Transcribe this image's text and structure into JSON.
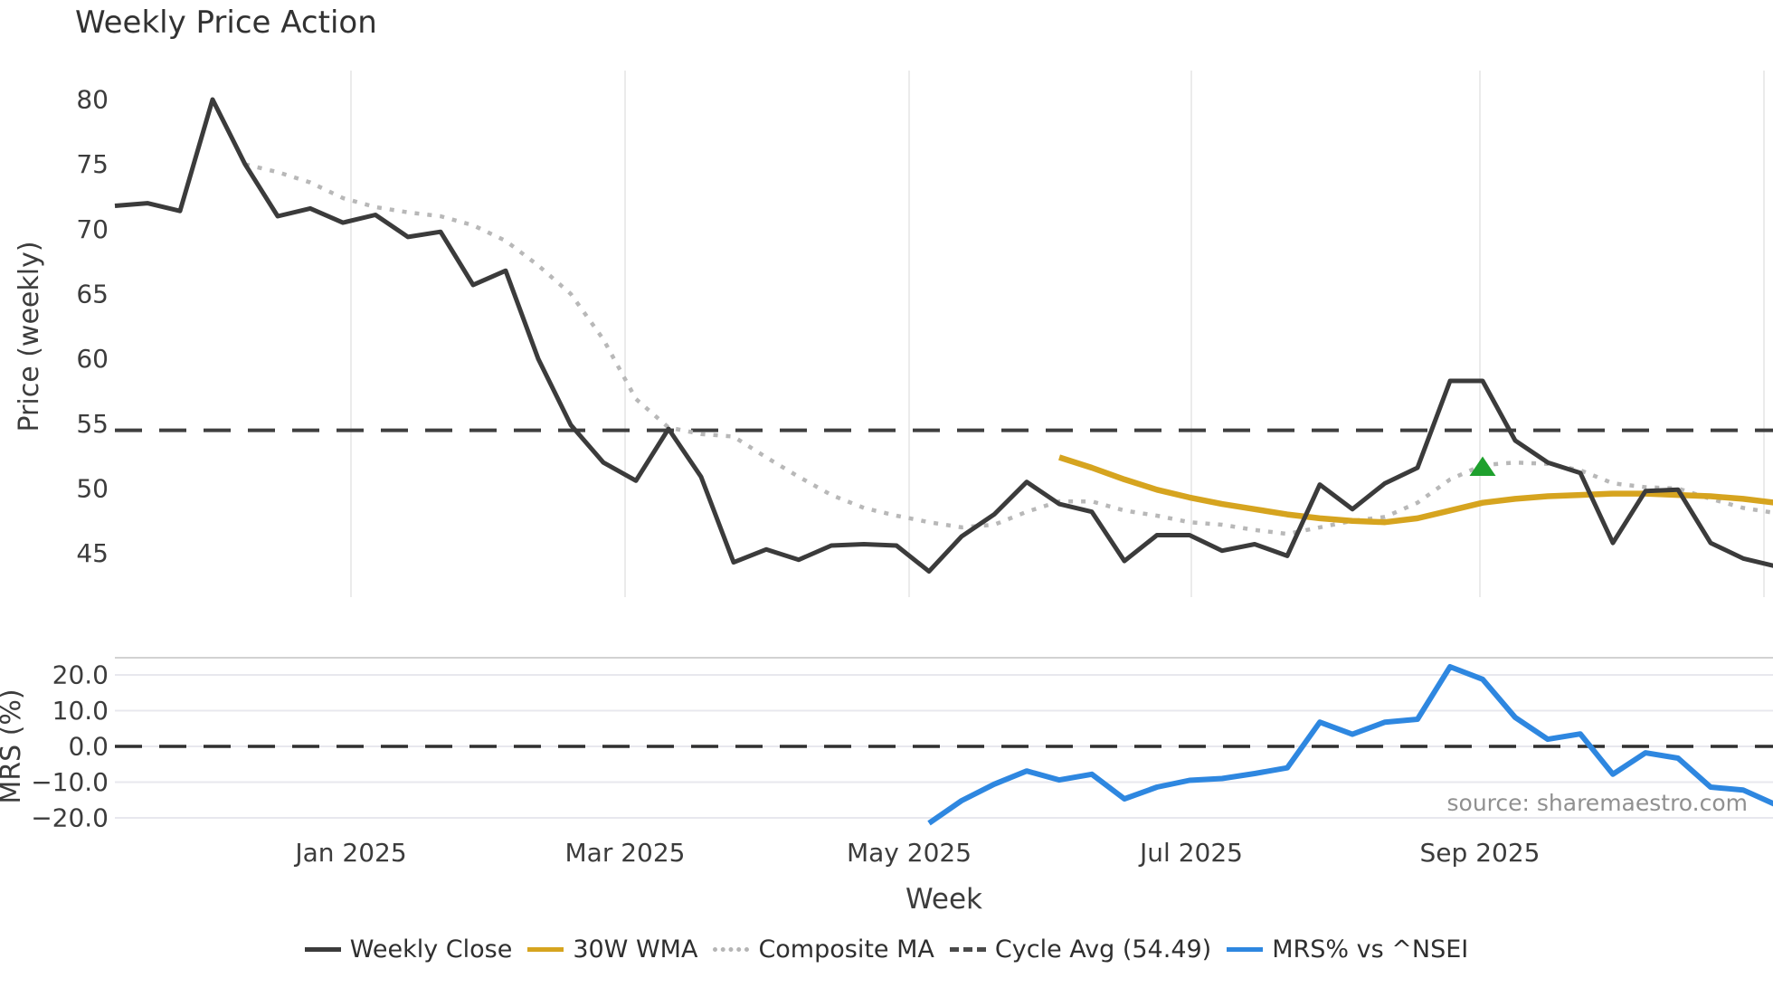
{
  "page": {
    "background": "#ffffff"
  },
  "chart_data": {
    "type": "line",
    "title": "Weekly Price Action",
    "xlabel": "Week",
    "x_tick_labels": [
      "Jan 2025",
      "Mar 2025",
      "May 2025",
      "Jul 2025",
      "Sep 2025"
    ],
    "source_note": "source: sharemaestro.com",
    "price_panel": {
      "ylabel": "Price (weekly)",
      "y_ticks": [
        80,
        75,
        70,
        65,
        60,
        55,
        50,
        45
      ],
      "ylim_approx": [
        41.6,
        82.3
      ],
      "grid": "vertical-months-only",
      "cycle_avg": {
        "label": "Cycle Avg (54.49)",
        "value": 54.49,
        "color": "#3f3f3f",
        "style": "dashed"
      },
      "series": [
        {
          "name": "Weekly Close",
          "color": "#3b3b3b",
          "style": "solid",
          "width": 5,
          "start_week": 0,
          "values": [
            71.8,
            72.0,
            71.4,
            80.0,
            75.0,
            71.0,
            71.6,
            70.5,
            71.1,
            69.4,
            69.8,
            65.7,
            66.8,
            60.0,
            54.9,
            52.0,
            50.6,
            54.6,
            50.9,
            44.3,
            45.3,
            44.5,
            45.6,
            45.7,
            45.6,
            43.6,
            46.3,
            48.0,
            50.5,
            48.8,
            48.2,
            44.4,
            46.4,
            46.4,
            45.2,
            45.7,
            44.8,
            50.3,
            48.4,
            50.4,
            51.6,
            58.3,
            58.3,
            53.7,
            52.0,
            51.2,
            45.8,
            49.8,
            49.9,
            45.8,
            44.6,
            44.0
          ]
        },
        {
          "name": "30W WMA",
          "color": "#d6a41f",
          "style": "solid",
          "width": 6.5,
          "start_week": 29,
          "values": [
            52.4,
            51.6,
            50.7,
            49.9,
            49.3,
            48.8,
            48.4,
            48.0,
            47.7,
            47.5,
            47.4,
            47.7,
            48.3,
            48.9,
            49.2,
            49.4,
            49.5,
            49.6,
            49.6,
            49.5,
            49.4,
            49.2,
            48.9
          ]
        },
        {
          "name": "Composite MA",
          "color": "#b8b8b8",
          "style": "dotted",
          "width": 4.5,
          "start_week": 4,
          "values": [
            75.0,
            74.4,
            73.6,
            72.4,
            71.7,
            71.3,
            71.0,
            70.3,
            69.1,
            67.2,
            65.0,
            61.5,
            56.9,
            54.7,
            54.2,
            54.0,
            52.4,
            50.9,
            49.5,
            48.5,
            47.9,
            47.4,
            47.0,
            47.2,
            48.2,
            49.0,
            49.0,
            48.3,
            47.9,
            47.4,
            47.2,
            46.8,
            46.5,
            47.0,
            47.5,
            47.8,
            48.9,
            50.7,
            51.8,
            52.0,
            51.9,
            51.4,
            50.4,
            50.1,
            50.0,
            49.2,
            48.5,
            48.1
          ]
        }
      ],
      "marker": {
        "shape": "triangle-up",
        "color": "#1ea02d",
        "week": 42,
        "value": 51.7
      }
    },
    "mrs_panel": {
      "ylabel": "MRS (%)",
      "y_tick_labels": [
        "20.0",
        "10.0",
        "0.0",
        "−10.0",
        "−20.0"
      ],
      "y_tick_values": [
        20,
        10,
        0,
        -10,
        -20
      ],
      "grid": "horizontal",
      "zero_line": {
        "value": 0,
        "style": "dashed",
        "color": "#2f2f2f"
      },
      "series": [
        {
          "name": "MRS% vs ^NSEI",
          "color": "#2e87e0",
          "style": "solid",
          "width": 6,
          "start_week": 25,
          "values": [
            -21.5,
            -15.2,
            -10.6,
            -6.9,
            -9.4,
            -7.8,
            -14.7,
            -11.4,
            -9.5,
            -9.0,
            -7.6,
            -6.0,
            6.8,
            3.4,
            6.8,
            7.6,
            22.3,
            18.8,
            8.1,
            2.0,
            3.5,
            -7.8,
            -1.8,
            -3.3,
            -11.4,
            -12.2,
            -16.3
          ]
        }
      ]
    },
    "legend": [
      {
        "label": "Weekly Close",
        "color": "#3b3b3b",
        "style": "solid"
      },
      {
        "label": "30W WMA",
        "color": "#d6a41f",
        "style": "solid"
      },
      {
        "label": "Composite MA",
        "color": "#b5b5b5",
        "style": "dotted"
      },
      {
        "label": "Cycle Avg (54.49)",
        "color": "#4a4a4a",
        "style": "dashed"
      },
      {
        "label": "MRS% vs ^NSEI",
        "color": "#2e87e0",
        "style": "solid"
      }
    ],
    "colors": {
      "tick_text": "#3c3c3c",
      "grid_vertical": "#ebebeb",
      "grid_horizontal": "#e8e8ee",
      "panel_border": "#d2d2d2",
      "source_text": "#909090"
    }
  }
}
